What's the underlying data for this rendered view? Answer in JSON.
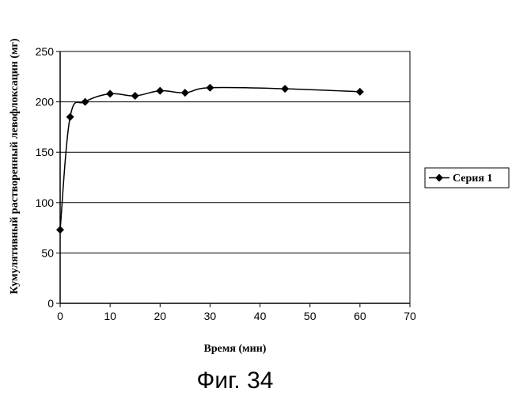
{
  "chart_data": {
    "type": "line",
    "xlabel": "Время (мин)",
    "ylabel": "Кумулятивный растворенный левофлоксацин (мг)",
    "caption": "Фиг. 34",
    "xlim": [
      0,
      70
    ],
    "ylim": [
      0,
      250
    ],
    "x_ticks": [
      0,
      10,
      20,
      30,
      40,
      50,
      60,
      70
    ],
    "y_ticks": [
      0,
      50,
      100,
      150,
      200,
      250
    ],
    "grid": "horizontal",
    "legend_position": "right",
    "series": [
      {
        "name": "Серия 1",
        "color": "#000000",
        "marker": "diamond",
        "x": [
          0,
          2,
          5,
          10,
          15,
          20,
          25,
          30,
          45,
          60
        ],
        "values": [
          73,
          185,
          200,
          208,
          206,
          211,
          209,
          214,
          213,
          210
        ]
      }
    ]
  }
}
